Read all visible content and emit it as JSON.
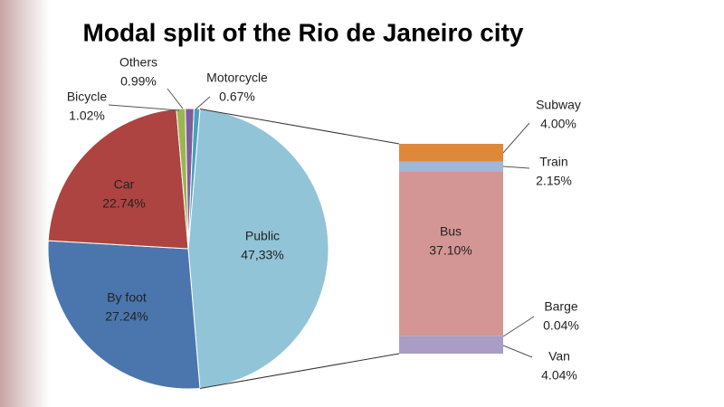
{
  "chart_data": {
    "type": "pie-of-bar",
    "title": "Modal split of the Rio de Janeiro city",
    "categories": [
      "Public",
      "By foot",
      "Car",
      "Bicycle",
      "Others",
      "Motorcycle"
    ],
    "values": [
      47.33,
      27.24,
      22.74,
      1.02,
      0.99,
      0.67
    ],
    "value_labels": [
      "47,33%",
      "27.24%",
      "22.74%",
      "1.02%",
      "0.99%",
      "0.67%"
    ],
    "colors": [
      "#92c4d8",
      "#4a76ad",
      "#ad4442",
      "#9bb550",
      "#7d5e9b",
      "#4a9fbd"
    ],
    "breakdown": {
      "categories": [
        "Van",
        "Barge",
        "Bus",
        "Train",
        "Subway"
      ],
      "values": [
        4.04,
        0.04,
        37.1,
        2.15,
        4.0
      ],
      "value_labels": [
        "4.04%",
        "0.04%",
        "37.10%",
        "2.15%",
        "4.00%"
      ],
      "colors": [
        "#a99dc5",
        "#b6cc8c",
        "#d49695",
        "#9db8dd",
        "#e0883a"
      ]
    }
  }
}
